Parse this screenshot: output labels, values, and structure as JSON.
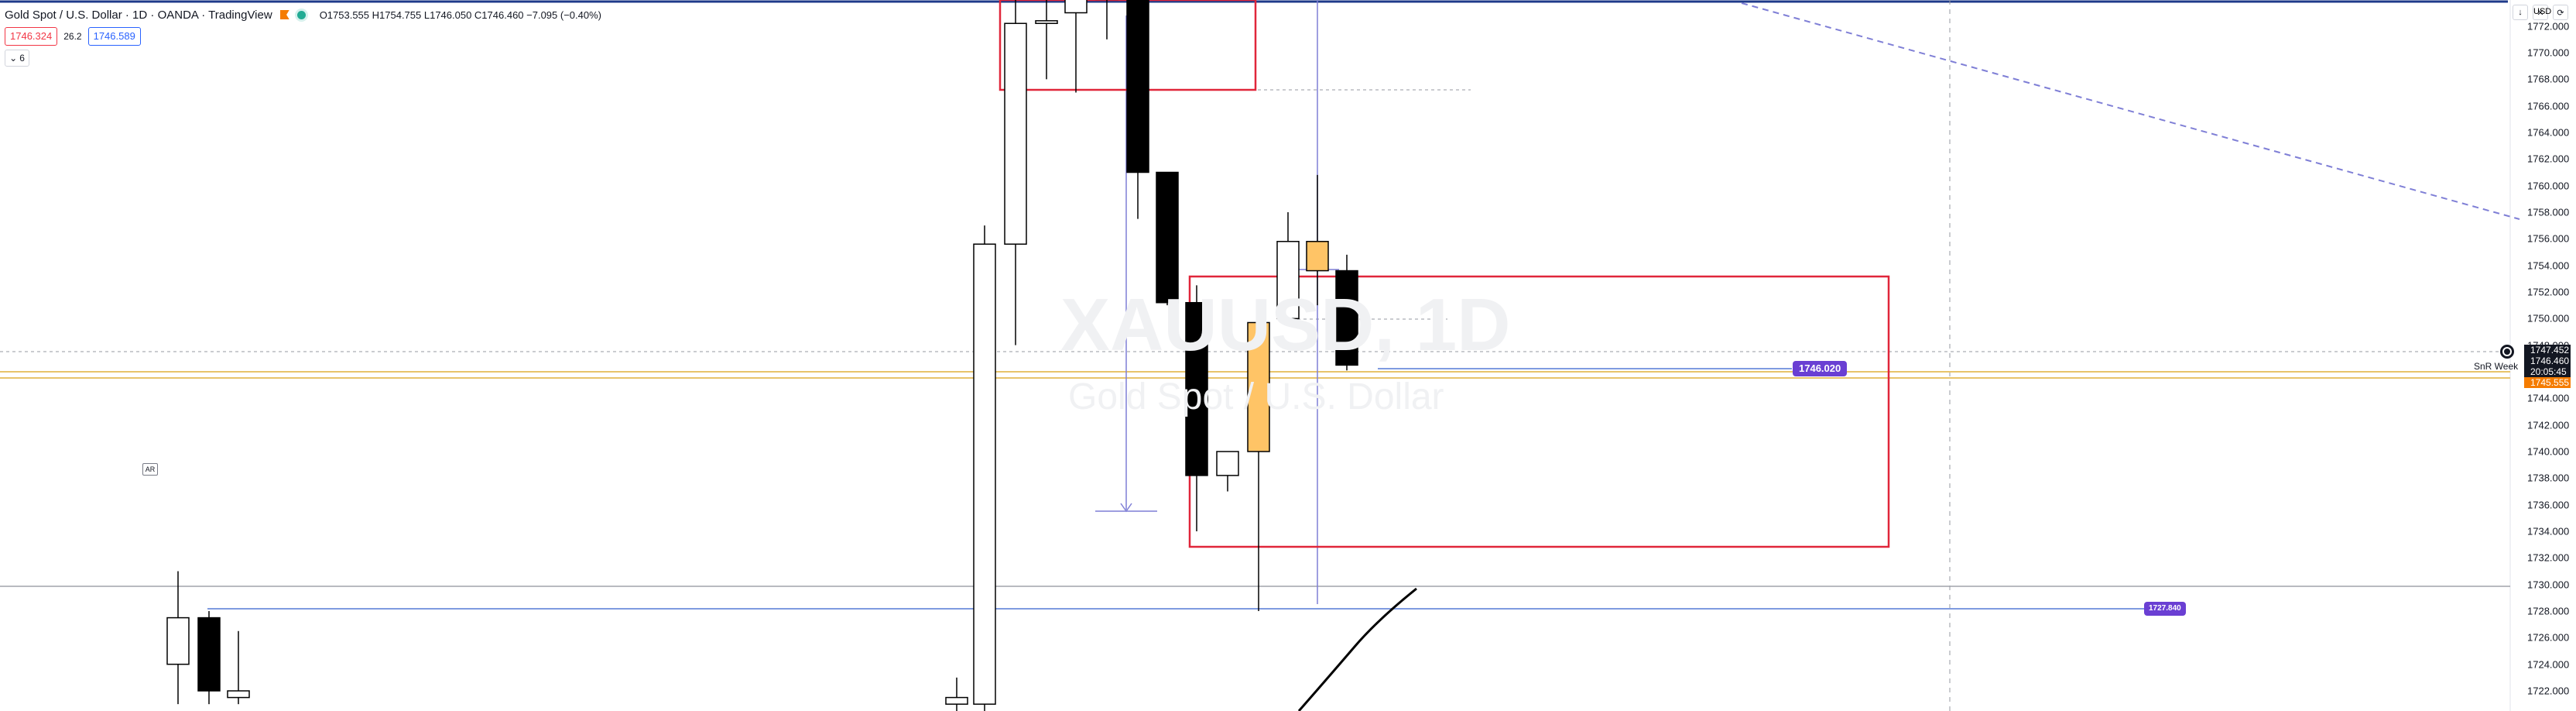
{
  "header": {
    "title": "Gold Spot / U.S. Dollar · 1D · OANDA · TradingView",
    "ohlc": "O1753.555 H1754.755 L1746.050 C1746.460 −7.095 (−0.40%)"
  },
  "quote": {
    "sell": "1746.324",
    "spread": "26.2",
    "buy": "1746.589"
  },
  "indicators_toggle": {
    "count": "6"
  },
  "toolbar": {
    "currency": "USD"
  },
  "watermark": {
    "symbol": "XAUUSD, 1D",
    "description": "Gold Spot / U.S. Dollar"
  },
  "drawings": {
    "ar_label": "AR",
    "snr_label": "SnR Week",
    "badge_upper": "1746.020",
    "badge_lower": "1727.840"
  },
  "price_tags": {
    "high": "1747.452",
    "last": "1746.460",
    "countdown": "20:05:45",
    "low": "1745.555"
  },
  "colors": {
    "up": "#ffffff",
    "down": "#000000",
    "highlight": "#ffc466",
    "zone": "#e0263a",
    "drawing": "#7f7fd6",
    "sr_line": "#e8c46a"
  },
  "chart_data": {
    "type": "candlestick",
    "y_axis_ticks": [
      "1772.000",
      "1770.000",
      "1768.000",
      "1766.000",
      "1764.000",
      "1762.000",
      "1760.000",
      "1758.000",
      "1756.000",
      "1754.000",
      "1752.000",
      "1750.000",
      "1748.000",
      "1746.000",
      "1744.000",
      "1742.000",
      "1740.000",
      "1738.000",
      "1736.000",
      "1734.000",
      "1732.000",
      "1730.000",
      "1728.000",
      "1726.000",
      "1724.000",
      "1722.000"
    ],
    "ylim": [
      1721.3,
      1775.2
    ],
    "candles": [
      {
        "o": 1724.0,
        "h": 1731.0,
        "l": 1721.0,
        "c": 1727.5,
        "dir": "up"
      },
      {
        "o": 1727.5,
        "h": 1728.0,
        "l": 1721.0,
        "c": 1722.0,
        "dir": "down"
      },
      {
        "o": 1722.0,
        "h": 1726.5,
        "l": 1721.0,
        "c": 1721.5,
        "dir": "up"
      },
      {
        "o": 1721.5,
        "h": 1723.0,
        "l": 1720.0,
        "c": 1721.0,
        "dir": "up"
      },
      {
        "o": 1721.0,
        "h": 1757.0,
        "l": 1720.0,
        "c": 1755.6,
        "dir": "up"
      },
      {
        "o": 1755.6,
        "h": 1774.0,
        "l": 1748.0,
        "c": 1772.2,
        "dir": "up"
      },
      {
        "o": 1772.2,
        "h": 1775.0,
        "l": 1768.0,
        "c": 1772.4,
        "dir": "up"
      },
      {
        "o": 1773.0,
        "h": 1775.0,
        "l": 1767.0,
        "c": 1775.0,
        "dir": "up"
      },
      {
        "o": 1775.0,
        "h": 1775.5,
        "l": 1771.0,
        "c": 1774.0,
        "dir": "down"
      },
      {
        "o": 1775.0,
        "h": 1775.2,
        "l": 1757.5,
        "c": 1761.0,
        "dir": "down"
      },
      {
        "o": 1761.0,
        "h": 1761.0,
        "l": 1751.0,
        "c": 1751.2,
        "dir": "down"
      },
      {
        "o": 1751.2,
        "h": 1752.5,
        "l": 1734.0,
        "c": 1738.2,
        "dir": "down"
      },
      {
        "o": 1738.2,
        "h": 1740.0,
        "l": 1737.0,
        "c": 1740.0,
        "dir": "up"
      },
      {
        "o": 1740.0,
        "h": 1750.0,
        "l": 1728.0,
        "c": 1749.7,
        "dir": "highlight"
      },
      {
        "o": 1750.0,
        "h": 1758.0,
        "l": 1749.5,
        "c": 1755.8,
        "dir": "up"
      },
      {
        "o": 1755.8,
        "h": 1760.8,
        "l": 1751.0,
        "c": 1753.6,
        "dir": "highlight"
      },
      {
        "o": 1753.6,
        "h": 1754.8,
        "l": 1746.1,
        "c": 1746.5,
        "dir": "down"
      }
    ]
  }
}
